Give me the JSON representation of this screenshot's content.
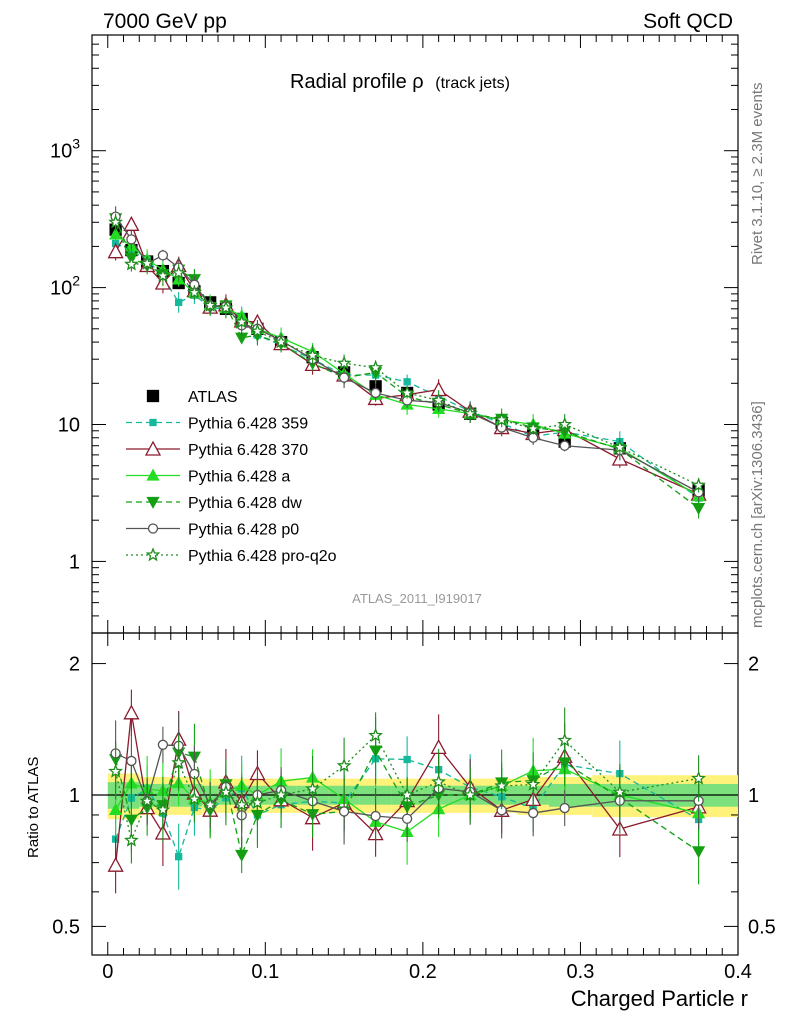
{
  "header": {
    "left": "7000 GeV pp",
    "right": "Soft QCD"
  },
  "side": {
    "rivet": "Rivet 3.1.10, ≥ 2.3M events",
    "mcplots": "mcplots.cern.ch [arXiv:1306.3436]"
  },
  "chart_data": {
    "type": "line",
    "title_main": "Radial profile ρ",
    "title_sub": "(track jets)",
    "analysis_label": "ATLAS_2011_I919017",
    "xlabel": "Charged Particle r",
    "ratio_ylabel": "Ratio to ATLAS",
    "x_ticks": [
      "0",
      "0.1",
      "0.2",
      "0.3",
      "0.4"
    ],
    "main_y_ticks": [
      "1",
      "10",
      "10^2",
      "10^3"
    ],
    "ratio_y_ticks": [
      "0.5",
      "1",
      "2"
    ],
    "xlim": [
      -0.01,
      0.4
    ],
    "main_ylim": [
      0.3,
      7000
    ],
    "main_yscale": "log",
    "ratio_ylim": [
      0.43,
      2.35
    ],
    "ratio_yscale": "log",
    "legend_position": "middle-left",
    "x": [
      0.005,
      0.015,
      0.025,
      0.035,
      0.045,
      0.055,
      0.065,
      0.075,
      0.085,
      0.095,
      0.11,
      0.13,
      0.15,
      0.17,
      0.19,
      0.21,
      0.23,
      0.25,
      0.27,
      0.29,
      0.325,
      0.375
    ],
    "ratio_band": {
      "inner_color": "#7CE07C",
      "outer_color": "#FFF27A",
      "inner": [
        0.07,
        0.07,
        0.06,
        0.06,
        0.06,
        0.06,
        0.05,
        0.05,
        0.05,
        0.05,
        0.05,
        0.05,
        0.05,
        0.05,
        0.05,
        0.05,
        0.05,
        0.05,
        0.05,
        0.06,
        0.06,
        0.06
      ],
      "outer": [
        0.12,
        0.12,
        0.1,
        0.1,
        0.1,
        0.1,
        0.09,
        0.09,
        0.09,
        0.09,
        0.09,
        0.09,
        0.09,
        0.09,
        0.09,
        0.09,
        0.09,
        0.09,
        0.1,
        0.1,
        0.11,
        0.11
      ]
    },
    "series": [
      {
        "name": "ATLAS",
        "color": "#000000",
        "marker": "square",
        "line": "none",
        "values": [
          265,
          188,
          155,
          132,
          108,
          94,
          78,
          70,
          59,
          50,
          40,
          31,
          24,
          19,
          17,
          14,
          12,
          10.3,
          8.8,
          7.5,
          6.7,
          3.3
        ]
      },
      {
        "name": "Pythia 6.428 359",
        "color": "#14B89A",
        "marker": "smallsquare",
        "line": "dashed",
        "values": [
          210,
          185,
          160,
          120,
          78,
          88,
          72,
          69,
          61,
          45,
          38,
          30,
          23,
          23,
          20.5,
          16,
          12.5,
          10.2,
          8.2,
          8.8,
          7.5,
          2.9
        ]
      },
      {
        "name": "Pythia 6.428 370",
        "color": "#8B1A2E",
        "marker": "triangle-open",
        "line": "solid",
        "values": [
          183,
          290,
          145,
          108,
          145,
          95,
          72,
          75,
          57,
          56,
          39,
          27.5,
          23,
          15.5,
          16.5,
          18,
          12.5,
          9.5,
          8.6,
          9.2,
          5.6,
          3.1
        ]
      },
      {
        "name": "Pythia 6.428 a",
        "color": "#22DD22",
        "marker": "triangle",
        "line": "solid",
        "values": [
          245,
          200,
          160,
          135,
          115,
          92,
          75,
          71,
          62,
          50,
          43,
          34,
          23.5,
          16.5,
          14,
          13,
          12,
          10.8,
          10,
          8.6,
          6.7,
          3.0
        ]
      },
      {
        "name": "Pythia 6.428 dw",
        "color": "#12A012",
        "marker": "triangle-down",
        "line": "dashed",
        "values": [
          320,
          165,
          145,
          125,
          135,
          115,
          72,
          74,
          43,
          45,
          39,
          28,
          22,
          24,
          16,
          14,
          12,
          11,
          9.5,
          8.9,
          6.6,
          2.45
        ]
      },
      {
        "name": "Pythia 6.428 p0",
        "color": "#555555",
        "marker": "circle-open",
        "line": "solid",
        "values": [
          330,
          225,
          150,
          172,
          140,
          105,
          74,
          73,
          53,
          50,
          41,
          30,
          22,
          17,
          15,
          14.5,
          12.2,
          9.5,
          8.0,
          7.0,
          6.5,
          3.2
        ]
      },
      {
        "name": "Pythia 6.428 pro-q2o",
        "color": "#1E8C1E",
        "marker": "star-open",
        "line": "dotted",
        "values": [
          300,
          148,
          150,
          122,
          128,
          92,
          74,
          71,
          56,
          48,
          40,
          32,
          28,
          26,
          17,
          15,
          12,
          10.8,
          9.3,
          10.0,
          6.8,
          3.6
        ]
      }
    ]
  }
}
